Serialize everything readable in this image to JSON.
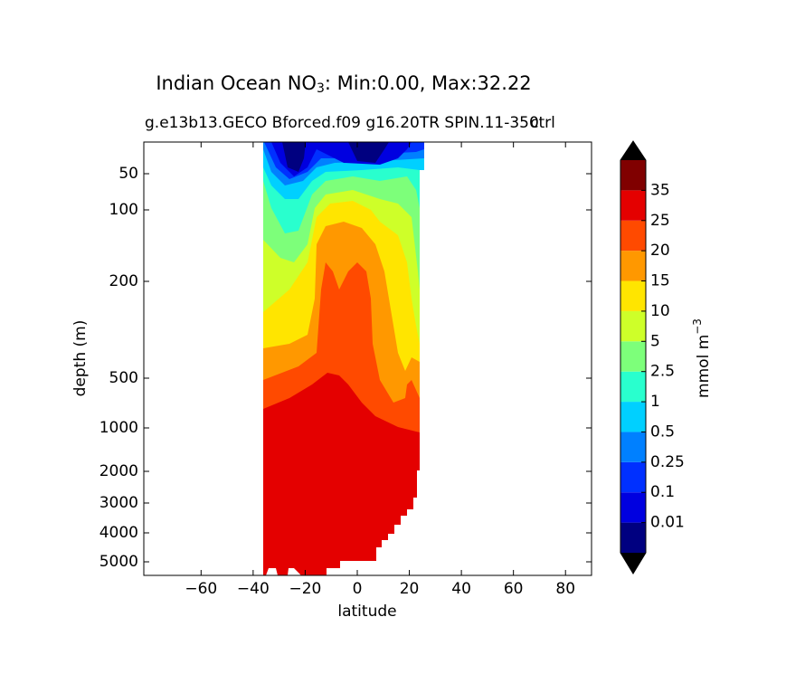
{
  "chart_data": {
    "type": "contour",
    "title": "Indian Ocean NO",
    "title_sub": "3",
    "title_rest": ": Min:0.00, Max:32.22",
    "subtitle": "g.e13b13.GECO Bforced.f09 g16.20TR SPIN.11-350",
    "subtitle_right": "ctrl",
    "xlabel": "latitude",
    "ylabel": "depth (m)",
    "xlim": [
      -82,
      90
    ],
    "xticks": [
      {
        "value": -60,
        "label": "−60"
      },
      {
        "value": -40,
        "label": "−40"
      },
      {
        "value": -20,
        "label": "−20"
      },
      0,
      20,
      40,
      60,
      80
    ],
    "ylim": [
      5500,
      0
    ],
    "yticks": [
      50,
      100,
      200,
      500,
      1000,
      2000,
      3000,
      4000,
      5000
    ],
    "colorbar": {
      "label": "mmol m",
      "label_sup": "−3",
      "extend": "both",
      "extend_color": "#000000",
      "levels": [
        0.01,
        0.1,
        0.25,
        0.5,
        1,
        2.5,
        5,
        10,
        15,
        20,
        25,
        35
      ],
      "colors": [
        "#000080",
        "#0000e0",
        "#0030ff",
        "#0080ff",
        "#00d0ff",
        "#29ffce",
        "#7dff7a",
        "#ceff29",
        "#ffe500",
        "#ff9800",
        "#ff4a00",
        "#e40000",
        "#800000"
      ]
    }
  }
}
